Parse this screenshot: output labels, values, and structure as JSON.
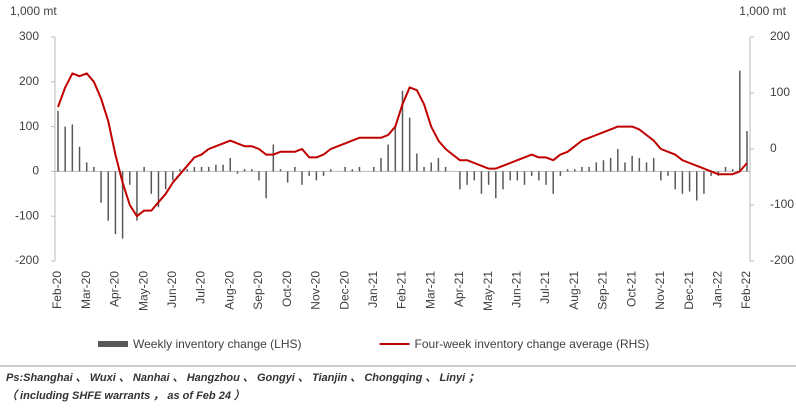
{
  "chart_data": {
    "type": "bar_line",
    "y_unit": "1,000 mt",
    "y2_unit": "1,000 mt",
    "categories": [
      "Feb-20",
      null,
      null,
      null,
      "Mar-20",
      null,
      null,
      null,
      "Apr-20",
      null,
      null,
      null,
      "May-20",
      null,
      null,
      null,
      "Jun-20",
      null,
      null,
      null,
      "Jul-20",
      null,
      null,
      null,
      "Aug-20",
      null,
      null,
      null,
      "Sep-20",
      null,
      null,
      null,
      "Oct-20",
      null,
      null,
      null,
      "Nov-20",
      null,
      null,
      null,
      "Dec-20",
      null,
      null,
      null,
      "Jan-21",
      null,
      null,
      null,
      "Feb-21",
      null,
      null,
      null,
      "Mar-21",
      null,
      null,
      null,
      "Apr-21",
      null,
      null,
      null,
      "May-21",
      null,
      null,
      null,
      "Jun-21",
      null,
      null,
      null,
      "Jul-21",
      null,
      null,
      null,
      "Aug-21",
      null,
      null,
      null,
      "Sep-21",
      null,
      null,
      null,
      "Oct-21",
      null,
      null,
      null,
      "Nov-21",
      null,
      null,
      null,
      "Dec-21",
      null,
      null,
      null,
      "Jan-22",
      null,
      null,
      null,
      "Feb-22"
    ],
    "series": [
      {
        "name": "Weekly inventory change (LHS)",
        "color": "#595959",
        "kind": "bar",
        "axis": "y",
        "values": [
          135,
          100,
          105,
          55,
          20,
          10,
          -70,
          -110,
          -140,
          -150,
          -30,
          -110,
          10,
          -50,
          -80,
          -40,
          -20,
          5,
          5,
          10,
          10,
          10,
          15,
          15,
          30,
          -5,
          5,
          5,
          -20,
          -60,
          60,
          5,
          -25,
          10,
          -30,
          -10,
          -20,
          -10,
          5,
          0,
          10,
          5,
          10,
          0,
          10,
          30,
          60,
          100,
          180,
          120,
          40,
          10,
          20,
          30,
          10,
          0,
          -40,
          -30,
          -20,
          -50,
          -30,
          -60,
          -40,
          -20,
          -20,
          -30,
          -10,
          -20,
          -30,
          -50,
          -10,
          5,
          5,
          10,
          10,
          20,
          25,
          30,
          50,
          20,
          35,
          30,
          20,
          30,
          -20,
          -10,
          -40,
          -50,
          -45,
          -65,
          -50,
          -10,
          -10,
          10,
          5,
          225,
          90
        ]
      },
      {
        "name": "Four-week inventory change average (RHS)",
        "color": "#c00000",
        "kind": "line",
        "axis": "y2",
        "values": [
          75,
          110,
          135,
          130,
          135,
          120,
          90,
          50,
          -10,
          -60,
          -100,
          -120,
          -110,
          -110,
          -95,
          -80,
          -60,
          -45,
          -30,
          -15,
          -10,
          0,
          5,
          10,
          15,
          10,
          5,
          5,
          0,
          -10,
          -10,
          -5,
          -5,
          -5,
          0,
          -15,
          -15,
          -10,
          0,
          5,
          10,
          15,
          20,
          20,
          20,
          20,
          25,
          40,
          80,
          110,
          105,
          80,
          40,
          15,
          0,
          -10,
          -20,
          -20,
          -25,
          -30,
          -35,
          -35,
          -30,
          -25,
          -20,
          -15,
          -10,
          -15,
          -15,
          -20,
          -10,
          -5,
          5,
          15,
          20,
          25,
          30,
          35,
          40,
          40,
          40,
          35,
          25,
          15,
          0,
          -5,
          -10,
          -20,
          -25,
          -30,
          -35,
          -40,
          -45,
          -45,
          -45,
          -40,
          -25
        ]
      }
    ],
    "ylim": [
      -200,
      300
    ],
    "yticks": [
      -200,
      -100,
      0,
      100,
      200,
      300
    ],
    "y2lim": [
      -200,
      200
    ],
    "y2ticks": [
      -200,
      -100,
      0,
      100,
      200
    ],
    "notes": [
      "Ps:Shanghai 、 Wuxi 、 Nanhai 、 Hangzhou 、 Gongyi 、 Tianjin 、 Chongqing 、 Linyi ；",
      "（ including SHFE warrants ，  as of Feb 24 ）"
    ]
  }
}
